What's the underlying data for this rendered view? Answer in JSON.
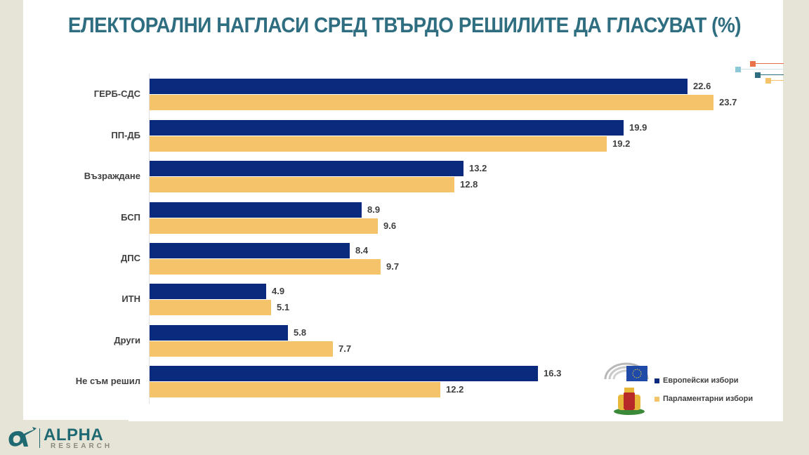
{
  "title": "ЕЛЕКТОРАЛНИ НАГЛАСИ СРЕД ТВЪРДО РЕШИЛИТЕ ДА ГЛАСУВАТ (%)",
  "legend": {
    "eu_label": "Европейски избори",
    "parl_label": "Парламентарни избори"
  },
  "colors": {
    "eu": "#0a2a7e",
    "parl": "#f5c46a",
    "title": "#2e6e80"
  },
  "logo": {
    "main": "ALPHA",
    "sub": "RESEARCH"
  },
  "rows": [
    {
      "label": "ГЕРБ-СДС",
      "eu": "22.6",
      "parl": "23.7"
    },
    {
      "label": "ПП-ДБ",
      "eu": "19.9",
      "parl": "19.2"
    },
    {
      "label": "Възраждане",
      "eu": "13.2",
      "parl": "12.8"
    },
    {
      "label": "БСП",
      "eu": "8.9",
      "parl": "9.6"
    },
    {
      "label": "ДПС",
      "eu": "8.4",
      "parl": "9.7"
    },
    {
      "label": "ИТН",
      "eu": "4.9",
      "parl": "5.1"
    },
    {
      "label": "Други",
      "eu": "5.8",
      "parl": "7.7"
    },
    {
      "label": "Не съм решил",
      "eu": "16.3",
      "parl": "12.2"
    }
  ],
  "chart_data": {
    "type": "bar",
    "orientation": "horizontal",
    "title": "ЕЛЕКТОРАЛНИ НАГЛАСИ СРЕД ТВЪРДО РЕШИЛИТЕ ДА ГЛАСУВАТ (%)",
    "categories": [
      "ГЕРБ-СДС",
      "ПП-ДБ",
      "Възраждане",
      "БСП",
      "ДПС",
      "ИТН",
      "Други",
      "Не съм решил"
    ],
    "series": [
      {
        "name": "Европейски избори",
        "color": "#0a2a7e",
        "values": [
          22.6,
          19.9,
          13.2,
          8.9,
          8.4,
          4.9,
          5.8,
          16.3
        ]
      },
      {
        "name": "Парламентарни избори",
        "color": "#f5c46a",
        "values": [
          23.7,
          19.2,
          12.8,
          9.6,
          9.7,
          5.1,
          7.7,
          12.2
        ]
      }
    ],
    "xlabel": "",
    "ylabel": "",
    "xlim": [
      0,
      25
    ],
    "grid": false,
    "data_labels": true,
    "legend_position": "bottom-right"
  }
}
